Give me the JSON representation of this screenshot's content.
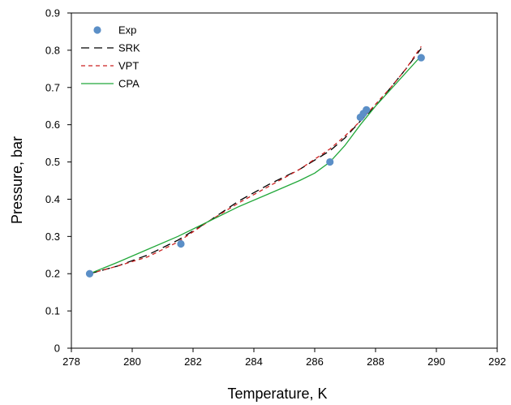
{
  "chart_data": {
    "type": "scatter",
    "title": "",
    "xlabel": "Temperature, K",
    "ylabel": "Pressure, bar",
    "xlim": [
      278,
      292
    ],
    "ylim": [
      0,
      0.9
    ],
    "x_ticks": [
      278,
      280,
      282,
      284,
      286,
      288,
      290,
      292
    ],
    "y_ticks": [
      0,
      0.1,
      0.2,
      0.3,
      0.4,
      0.5,
      0.6,
      0.7,
      0.8,
      0.9
    ],
    "x_tick_labels": [
      "278",
      "280",
      "282",
      "284",
      "286",
      "288",
      "290",
      "292"
    ],
    "y_tick_labels": [
      "0",
      "0.1",
      "0.2",
      "0.3",
      "0.4",
      "0.5",
      "0.6",
      "0.7",
      "0.8",
      "0.9"
    ],
    "grid": false,
    "legend_position": "top-left",
    "series": [
      {
        "name": "Exp",
        "type": "scatter",
        "color": "#5b8fc7",
        "x": [
          278.6,
          281.6,
          286.5,
          287.5,
          287.6,
          287.7,
          289.5
        ],
        "y": [
          0.2,
          0.28,
          0.5,
          0.62,
          0.63,
          0.64,
          0.78
        ]
      },
      {
        "name": "SRK",
        "type": "line",
        "style": "long-dash",
        "color": "#000000",
        "x": [
          278.6,
          279.5,
          280.5,
          281.5,
          282.5,
          283.5,
          284.5,
          285.5,
          286.5,
          287.0,
          287.5,
          288.0,
          288.5,
          289.0,
          289.5
        ],
        "y": [
          0.2,
          0.22,
          0.25,
          0.29,
          0.34,
          0.395,
          0.44,
          0.48,
          0.53,
          0.565,
          0.61,
          0.65,
          0.7,
          0.75,
          0.805
        ]
      },
      {
        "name": "VPT",
        "type": "line",
        "style": "short-dash",
        "color": "#cc2222",
        "x": [
          278.6,
          279.5,
          280.5,
          281.5,
          282.5,
          283.5,
          284.5,
          285.5,
          286.5,
          287.0,
          287.5,
          288.0,
          288.5,
          289.0,
          289.5
        ],
        "y": [
          0.2,
          0.22,
          0.245,
          0.285,
          0.34,
          0.39,
          0.435,
          0.48,
          0.535,
          0.57,
          0.61,
          0.655,
          0.7,
          0.75,
          0.81
        ]
      },
      {
        "name": "CPA",
        "type": "line",
        "style": "solid",
        "color": "#22a83a",
        "x": [
          278.6,
          279.5,
          280.5,
          281.5,
          282.5,
          283.5,
          284.5,
          285.5,
          286.0,
          286.5,
          287.0,
          287.5,
          288.0,
          288.5,
          289.0,
          289.5
        ],
        "y": [
          0.2,
          0.23,
          0.265,
          0.3,
          0.34,
          0.38,
          0.415,
          0.45,
          0.47,
          0.5,
          0.545,
          0.6,
          0.65,
          0.695,
          0.74,
          0.785
        ]
      }
    ]
  }
}
